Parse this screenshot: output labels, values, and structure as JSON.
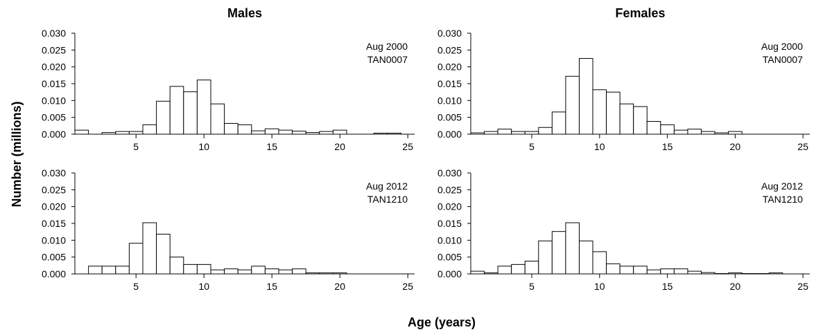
{
  "figure": {
    "xlabel": "Age (years)",
    "ylabel": "Number (millions)",
    "columns": [
      "Males",
      "Females"
    ]
  },
  "chart_data": [
    {
      "type": "bar",
      "title": "Males",
      "annotation": [
        "Aug 2000",
        "TAN0007"
      ],
      "x": [
        1,
        2,
        3,
        4,
        5,
        6,
        7,
        8,
        9,
        10,
        11,
        12,
        13,
        14,
        15,
        16,
        17,
        18,
        19,
        20,
        21,
        22,
        23,
        24
      ],
      "values": [
        0.0012,
        0,
        0.0005,
        0.0008,
        0.0008,
        0.0028,
        0.0098,
        0.0142,
        0.0126,
        0.0161,
        0.009,
        0.0032,
        0.0028,
        0.001,
        0.0016,
        0.0012,
        0.0009,
        0.0005,
        0.0008,
        0.0012,
        0,
        0,
        0.0003,
        0.0003
      ],
      "xlim": [
        0.5,
        25.5
      ],
      "ylim": [
        0,
        0.03
      ],
      "xticks": [
        5,
        10,
        15,
        20,
        25
      ],
      "yticks": [
        "0.000",
        "0.005",
        "0.010",
        "0.015",
        "0.020",
        "0.025",
        "0.030"
      ]
    },
    {
      "type": "bar",
      "title": "Females",
      "annotation": [
        "Aug 2000",
        "TAN0007"
      ],
      "x": [
        1,
        2,
        3,
        4,
        5,
        6,
        7,
        8,
        9,
        10,
        11,
        12,
        13,
        14,
        15,
        16,
        17,
        18,
        19,
        20,
        21,
        22,
        23,
        24
      ],
      "values": [
        0.0004,
        0.0008,
        0.0015,
        0.0008,
        0.0008,
        0.002,
        0.0066,
        0.0172,
        0.0225,
        0.0132,
        0.0125,
        0.009,
        0.0082,
        0.0038,
        0.0028,
        0.0012,
        0.0015,
        0.0008,
        0.0004,
        0.0008,
        0,
        0,
        0,
        0
      ],
      "xlim": [
        0.5,
        25.5
      ],
      "ylim": [
        0,
        0.03
      ],
      "xticks": [
        5,
        10,
        15,
        20,
        25
      ],
      "yticks": [
        "0.000",
        "0.005",
        "0.010",
        "0.015",
        "0.020",
        "0.025",
        "0.030"
      ]
    },
    {
      "type": "bar",
      "title": "",
      "annotation": [
        "Aug 2012",
        "TAN1210"
      ],
      "x": [
        1,
        2,
        3,
        4,
        5,
        6,
        7,
        8,
        9,
        10,
        11,
        12,
        13,
        14,
        15,
        16,
        17,
        18,
        19,
        20,
        21,
        22,
        23,
        24
      ],
      "values": [
        0,
        0.0023,
        0.0023,
        0.0023,
        0.0091,
        0.0152,
        0.0118,
        0.005,
        0.0028,
        0.0028,
        0.0012,
        0.0015,
        0.0012,
        0.0023,
        0.0015,
        0.0012,
        0.0015,
        0.0003,
        0.0003,
        0.0003,
        0,
        0,
        0,
        0
      ],
      "xlim": [
        0.5,
        25.5
      ],
      "ylim": [
        0,
        0.03
      ],
      "xticks": [
        5,
        10,
        15,
        20,
        25
      ],
      "yticks": [
        "0.000",
        "0.005",
        "0.010",
        "0.015",
        "0.020",
        "0.025",
        "0.030"
      ]
    },
    {
      "type": "bar",
      "title": "",
      "annotation": [
        "Aug 2012",
        "TAN1210"
      ],
      "x": [
        1,
        2,
        3,
        4,
        5,
        6,
        7,
        8,
        9,
        10,
        11,
        12,
        13,
        14,
        15,
        16,
        17,
        18,
        19,
        20,
        21,
        22,
        23,
        24
      ],
      "values": [
        0.0008,
        0.0003,
        0.0023,
        0.0028,
        0.0038,
        0.0098,
        0.0126,
        0.0152,
        0.0098,
        0.0066,
        0.003,
        0.0023,
        0.0023,
        0.0012,
        0.0015,
        0.0015,
        0.0008,
        0.0004,
        0.0001,
        0.0003,
        0.0001,
        0.0001,
        0.0003,
        0
      ],
      "xlim": [
        0.5,
        25.5
      ],
      "ylim": [
        0,
        0.03
      ],
      "xticks": [
        5,
        10,
        15,
        20,
        25
      ],
      "yticks": [
        "0.000",
        "0.005",
        "0.010",
        "0.015",
        "0.020",
        "0.025",
        "0.030"
      ]
    }
  ]
}
